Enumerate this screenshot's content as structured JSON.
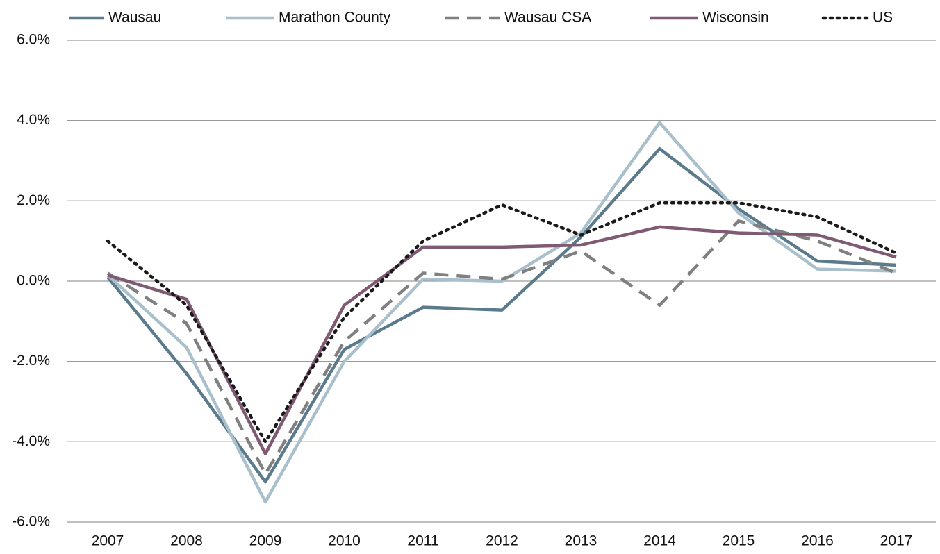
{
  "chart_data": {
    "type": "line",
    "categories": [
      "2007",
      "2008",
      "2009",
      "2010",
      "2011",
      "2012",
      "2013",
      "2014",
      "2015",
      "2016",
      "2017"
    ],
    "series": [
      {
        "name": "Wausau",
        "color": "#5b7b8d",
        "dash": "solid",
        "values": [
          0.1,
          -2.3,
          -5.0,
          -1.7,
          -0.65,
          -0.72,
          1.1,
          3.3,
          1.8,
          0.5,
          0.4
        ]
      },
      {
        "name": "Marathon County",
        "color": "#a9bfcb",
        "dash": "solid",
        "values": [
          0.15,
          -1.65,
          -5.5,
          -2.0,
          0.05,
          0.0,
          1.2,
          3.95,
          1.7,
          0.3,
          0.25
        ]
      },
      {
        "name": "Wausau CSA",
        "color": "#808080",
        "dash": "dashed",
        "values": [
          0.2,
          -1.05,
          -4.8,
          -1.5,
          0.2,
          0.05,
          0.75,
          -0.6,
          1.5,
          1.0,
          0.2
        ]
      },
      {
        "name": "Wisconsin",
        "color": "#7f5a73",
        "dash": "solid",
        "values": [
          0.15,
          -0.45,
          -4.3,
          -0.6,
          0.85,
          0.85,
          0.9,
          1.35,
          1.2,
          1.15,
          0.6
        ]
      },
      {
        "name": "US",
        "color": "#1a1a1a",
        "dash": "dotted",
        "values": [
          1.0,
          -0.6,
          -4.0,
          -0.9,
          1.0,
          1.9,
          1.15,
          1.95,
          1.95,
          1.6,
          0.7
        ]
      }
    ],
    "ylim": [
      -6,
      6
    ],
    "yticks": [
      {
        "value": -6,
        "label": "-6.0%"
      },
      {
        "value": -4,
        "label": "-4.0%"
      },
      {
        "value": -2,
        "label": "-2.0%"
      },
      {
        "value": 0,
        "label": "0.0%"
      },
      {
        "value": 2,
        "label": "2.0%"
      },
      {
        "value": 4,
        "label": "4.0%"
      },
      {
        "value": 6,
        "label": "6.0%"
      }
    ],
    "grid": true,
    "legend": "top"
  }
}
